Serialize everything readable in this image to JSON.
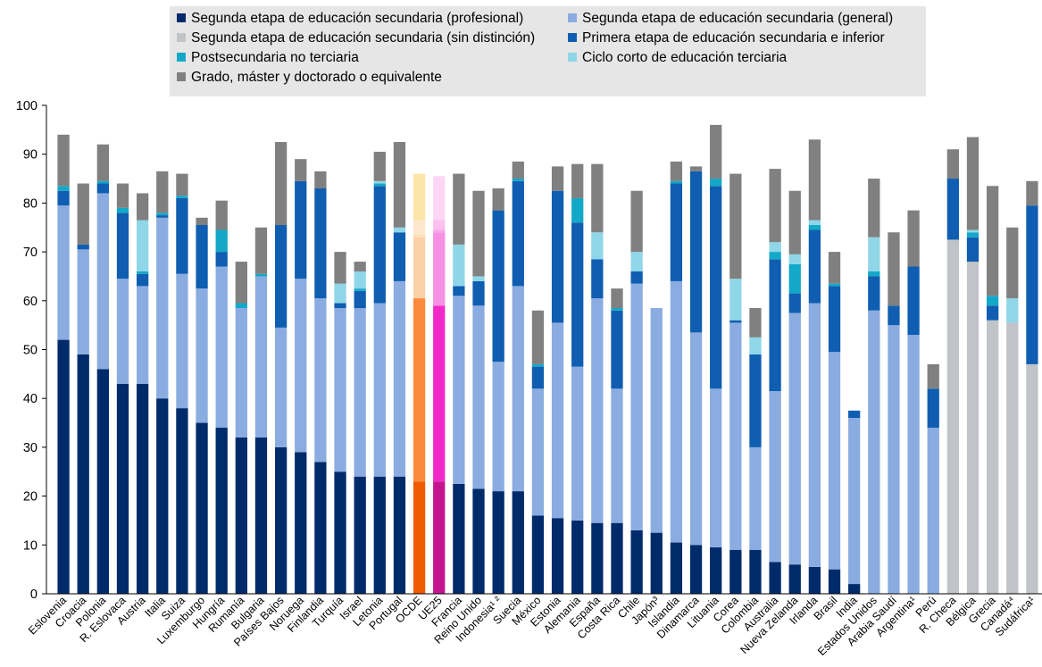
{
  "chart_data": {
    "type": "bar",
    "stacked": true,
    "ylim": [
      0,
      100
    ],
    "yticks": [
      0,
      10,
      20,
      30,
      40,
      50,
      60,
      70,
      80,
      90,
      100
    ],
    "grid": false,
    "legend_position": "top",
    "categories": [
      "Eslovenia",
      "Croacia",
      "Polonia",
      "R. Eslovaca",
      "Austria",
      "Italia",
      "Suiza",
      "Luxemburgo",
      "Hungría",
      "Rumanía",
      "Bulgaria",
      "Países Bajos",
      "Noruega",
      "Finlandia",
      "Turquía",
      "Israel",
      "Letonia",
      "Portugal",
      "OCDE",
      "UE25",
      "Francia",
      "Reino Unido",
      "Indonesia¹ ²",
      "Suecia",
      "México",
      "Estonia",
      "Alemania",
      "España",
      "Costa Rica",
      "Chile",
      "Japón³",
      "Islandia",
      "Dinamarca",
      "Lituania",
      "Corea",
      "Colombia",
      "Australia",
      "Nueva Zelanda",
      "Irlanda",
      "Brasil",
      "India",
      "Estados Unidos",
      "Arabia Saudí",
      "Argentina¹",
      "Perú",
      "R. Checa",
      "Bélgica",
      "Grecia",
      "Canadá⁴",
      "Sudáfrica¹"
    ],
    "series": [
      {
        "name": "Segunda etapa de educación secundaria (profesional)",
        "color": "#002b6b",
        "values": [
          52,
          49,
          46,
          43,
          43,
          40,
          38,
          35,
          34,
          32,
          32,
          30,
          29,
          27,
          25,
          24,
          24,
          24,
          23,
          23,
          22.5,
          21.5,
          21,
          21,
          16,
          15.5,
          15,
          14.5,
          14.5,
          13,
          12.5,
          10.5,
          10,
          9.5,
          9,
          9,
          6.5,
          6,
          5.5,
          5,
          2,
          0,
          0,
          0,
          0,
          0,
          0,
          0,
          0,
          0
        ]
      },
      {
        "name": "Segunda etapa de educación secundaria (general)",
        "color": "#8bace0",
        "values": [
          27.5,
          21.5,
          36,
          21.5,
          20,
          37,
          27.5,
          27.5,
          33,
          26.5,
          33,
          24.5,
          35.5,
          33.5,
          33.5,
          34.5,
          35.5,
          40,
          37.5,
          36,
          38.5,
          37.5,
          26.5,
          42,
          26,
          40,
          31.5,
          46,
          27.5,
          50.5,
          46,
          53.5,
          43.5,
          32.5,
          46.5,
          21,
          35,
          51.5,
          54,
          44.5,
          34,
          58,
          55,
          53,
          34,
          0,
          0,
          0,
          0,
          0
        ]
      },
      {
        "name": "Segunda etapa de educación secundaria (sin distinción)",
        "color": "#c0c4c8",
        "values": [
          0,
          0,
          0,
          0,
          0,
          0,
          0,
          0,
          0,
          0,
          0,
          0,
          0,
          0,
          0,
          0,
          0,
          0,
          0,
          0,
          0,
          0,
          0,
          0,
          0,
          0,
          0,
          0,
          0,
          0,
          0,
          0,
          0,
          0,
          0,
          0,
          0,
          0,
          0,
          0,
          0,
          0,
          0,
          0,
          0,
          72.5,
          68,
          56,
          55.5,
          47
        ]
      },
      {
        "name": "Primera etapa de educación secundaria e inferior",
        "color": "#0f5eb1",
        "values": [
          3,
          1,
          2,
          13.5,
          2.5,
          0.5,
          15.5,
          13,
          3,
          0,
          0,
          21,
          20,
          22.5,
          1,
          3.5,
          24,
          10,
          0,
          0,
          2,
          5,
          31,
          21.5,
          4.5,
          27,
          29.5,
          8,
          16,
          2.5,
          0,
          20,
          33,
          41.5,
          0.5,
          19,
          27,
          4,
          15,
          13.5,
          1.5,
          7,
          4,
          14,
          8,
          12.5,
          5,
          3,
          0,
          32.5
        ]
      },
      {
        "name": "Postsecundaria no terciaria",
        "color": "#14a8c8",
        "values": [
          1,
          0,
          0.5,
          1,
          0.5,
          0.5,
          0.5,
          0,
          4.5,
          1,
          0.5,
          0,
          0,
          0,
          0,
          0.5,
          0.5,
          0,
          0,
          0,
          0,
          0,
          0,
          0.5,
          0.5,
          0,
          5,
          0,
          0.5,
          0,
          0,
          0.5,
          0,
          1.5,
          0,
          0,
          1.5,
          6,
          1,
          0.5,
          0,
          1,
          0,
          0,
          0,
          0,
          1,
          2,
          0,
          0
        ]
      },
      {
        "name": "Ciclo corto de educación terciaria",
        "color": "#8fd6e8",
        "values": [
          0,
          0,
          0,
          0,
          10.5,
          0,
          0,
          0,
          0,
          0,
          0,
          0,
          0,
          0,
          4,
          3.5,
          0.5,
          1,
          0,
          0,
          8.5,
          1,
          0,
          0,
          0,
          0,
          0,
          5.5,
          0,
          4,
          0,
          0,
          0,
          0,
          8.5,
          3.5,
          2,
          2,
          1,
          0,
          0,
          7,
          0,
          0,
          0,
          0,
          0.5,
          0,
          5,
          0
        ]
      },
      {
        "name": "Grado, máster y doctorado o equivalente",
        "color": "#808080",
        "values": [
          10.5,
          12.5,
          7.5,
          5,
          5.5,
          8.5,
          4.5,
          1.5,
          6,
          8.5,
          9.5,
          17,
          4.5,
          3.5,
          6.5,
          2,
          6,
          17.5,
          0,
          0,
          14.5,
          17.5,
          4.5,
          3.5,
          11,
          5,
          7,
          14,
          4,
          12.5,
          0,
          4,
          1,
          11,
          21.5,
          6,
          15,
          13,
          16.5,
          6.5,
          0,
          12,
          15,
          11.5,
          5,
          6,
          19,
          22.5,
          14.5,
          5
        ]
      }
    ],
    "highlight": {
      "OCDE": {
        "total": 86,
        "colors": [
          "#f05a00",
          "#fb8a3c",
          "#fdb97e",
          "#fcd1a8",
          "#fde0bd",
          "#fde8ce",
          "#fde4a8"
        ],
        "values": [
          23,
          37.5,
          0,
          12.5,
          0.5,
          3,
          9.5
        ]
      },
      "UE25": {
        "total": 85.5,
        "colors": [
          "#c4148f",
          "#f02ac8",
          "#f660d8",
          "#f78fe2",
          "#f9a8ea",
          "#fbc0ee",
          "#fcd6f4"
        ],
        "values": [
          23,
          36,
          0,
          15,
          0.5,
          2,
          9
        ]
      }
    }
  }
}
